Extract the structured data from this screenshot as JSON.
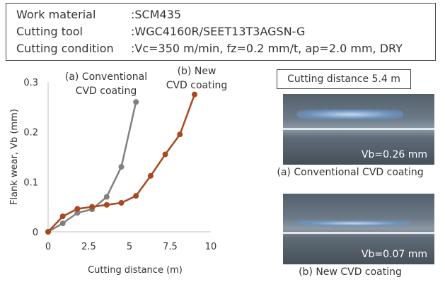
{
  "conditions": [
    {
      "label": "Work material",
      "value": ":SCM435"
    },
    {
      "label": "Cutting tool",
      "value": ":WGC4160R/SEET13T3AGSN-G"
    },
    {
      "label": "Cutting condition",
      "value": ":Vc=350 m/min, fz=0.2 mm/t, ap=2.0 mm, DRY"
    }
  ],
  "chart_data": {
    "type": "line",
    "xlabel": "Cutting distance (m)",
    "ylabel": "Flank wear, Vb (mm)",
    "xlim": [
      0,
      10
    ],
    "ylim": [
      0,
      0.3
    ],
    "xticks": [
      "0",
      "2.5",
      "5",
      "7.5",
      "10"
    ],
    "yticks": [
      "0",
      "0.1",
      "0.2",
      "0.3"
    ],
    "grid": false,
    "series": [
      {
        "name": "(a) Conventional CVD coating",
        "label_lines": [
          "(a) Conventional",
          "CVD coating"
        ],
        "color": "#808080",
        "x": [
          0,
          0.9,
          1.8,
          2.7,
          3.6,
          4.5,
          5.4
        ],
        "y": [
          0,
          0.017,
          0.038,
          0.045,
          0.07,
          0.13,
          0.26
        ]
      },
      {
        "name": "(b) New CVD coating",
        "label_lines": [
          "(b) New",
          "CVD coating"
        ],
        "color": "#a9471e",
        "x": [
          0,
          0.9,
          1.8,
          2.7,
          3.6,
          4.5,
          5.4,
          6.3,
          7.2,
          8.1,
          9.0
        ],
        "y": [
          0,
          0.031,
          0.046,
          0.05,
          0.054,
          0.058,
          0.072,
          0.112,
          0.155,
          0.195,
          0.275
        ]
      }
    ]
  },
  "photos": {
    "header": "Cutting distance 5.4 m",
    "a": {
      "vb": "Vb=0.26 mm",
      "caption": "(a) Conventional CVD coating"
    },
    "b": {
      "vb": "Vb=0.07 mm",
      "caption": "(b) New CVD coating"
    }
  }
}
